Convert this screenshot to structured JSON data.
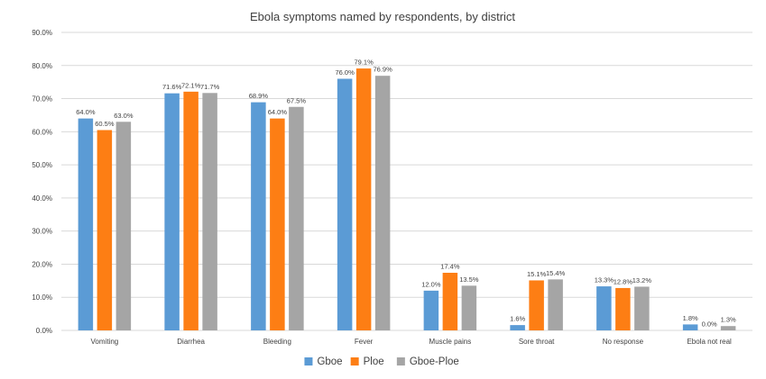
{
  "chart_data": {
    "type": "bar",
    "title": "Ebola symptoms named by respondents, by district",
    "xlabel": "",
    "ylabel": "",
    "ylim": [
      0,
      90
    ],
    "y_ticks": [
      "0.0%",
      "10.0%",
      "20.0%",
      "30.0%",
      "40.0%",
      "50.0%",
      "60.0%",
      "70.0%",
      "80.0%",
      "90.0%"
    ],
    "grid": true,
    "legend_position": "bottom",
    "categories": [
      "Vomiting",
      "Diarrhea",
      "Bleeding",
      "Fever",
      "Muscle pains",
      "Sore throat",
      "No response",
      "Ebola not real"
    ],
    "series": [
      {
        "name": "Gboe",
        "color": "#5b9bd5",
        "values": [
          64.0,
          71.6,
          68.9,
          76.0,
          12.0,
          1.6,
          13.3,
          1.8
        ],
        "labels": [
          "64.0%",
          "71.6%",
          "68.9%",
          "76.0%",
          "12.0%",
          "1.6%",
          "13.3%",
          "1.8%"
        ]
      },
      {
        "name": "Ploe",
        "color": "#fd7e14",
        "values": [
          60.5,
          72.1,
          64.0,
          79.1,
          17.4,
          15.1,
          12.8,
          0.0
        ],
        "labels": [
          "60.5%",
          "72.1%",
          "64.0%",
          "79.1%",
          "17.4%",
          "15.1%",
          "12.8%",
          "0.0%"
        ]
      },
      {
        "name": "Gboe-Ploe",
        "color": "#a5a5a5",
        "values": [
          63.0,
          71.7,
          67.5,
          76.9,
          13.5,
          15.4,
          13.2,
          1.3
        ],
        "labels": [
          "63.0%",
          "71.7%",
          "67.5%",
          "76.9%",
          "13.5%",
          "15.4%",
          "13.2%",
          "1.3%"
        ]
      }
    ]
  }
}
